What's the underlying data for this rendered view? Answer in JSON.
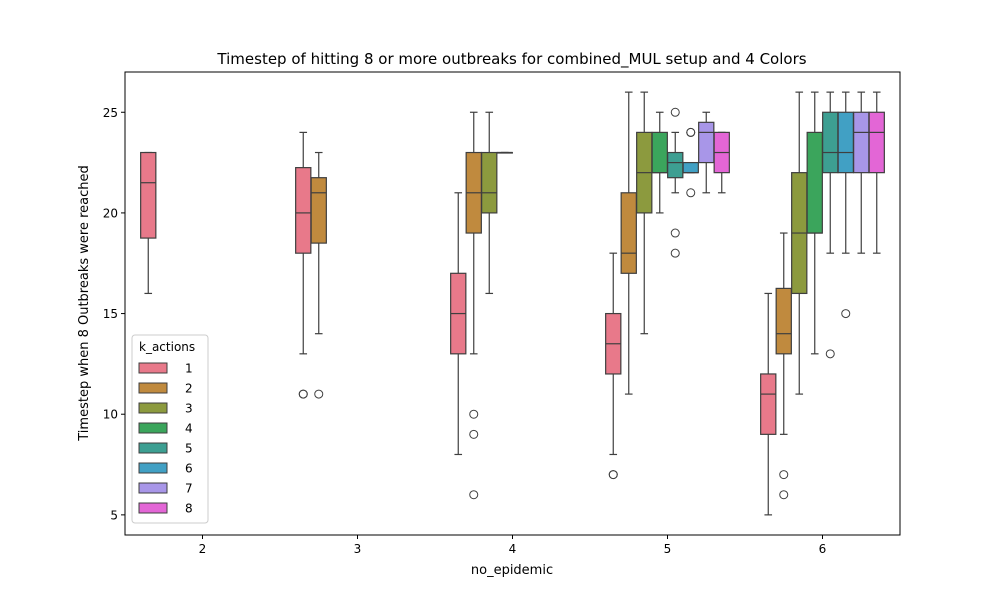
{
  "chart_data": {
    "type": "box",
    "title": "Timestep of hitting 8 or more outbreaks for combined_MUL setup and 4 Colors",
    "xlabel": "no_epidemic",
    "ylabel": "Timestep when 8 Outbreaks were reached",
    "ylim": [
      4,
      27
    ],
    "yticks": [
      5,
      10,
      15,
      20,
      25
    ],
    "categories": [
      "2",
      "3",
      "4",
      "5",
      "6"
    ],
    "grid": false,
    "legend": {
      "title": "k_actions",
      "placement": "lower-left"
    },
    "series": [
      {
        "name": "1",
        "color": "#e8798a",
        "boxes": [
          {
            "category": "2",
            "whislo": 16,
            "q1": 18.75,
            "med": 21.5,
            "q3": 23,
            "whishi": 23,
            "fliers": []
          },
          {
            "category": "3",
            "whislo": 13,
            "q1": 18,
            "med": 20,
            "q3": 22.25,
            "whishi": 24,
            "fliers": [
              11,
              11
            ]
          },
          {
            "category": "4",
            "whislo": 8,
            "q1": 13,
            "med": 15,
            "q3": 17,
            "whishi": 21,
            "fliers": []
          },
          {
            "category": "5",
            "whislo": 8,
            "q1": 12,
            "med": 13.5,
            "q3": 15,
            "whishi": 18,
            "fliers": [
              7,
              7
            ]
          },
          {
            "category": "6",
            "whislo": 5,
            "q1": 9,
            "med": 11,
            "q3": 12,
            "whishi": 16,
            "fliers": []
          }
        ]
      },
      {
        "name": "2",
        "color": "#c08a3e",
        "boxes": [
          {
            "category": "3",
            "whislo": 14,
            "q1": 18.5,
            "med": 21,
            "q3": 21.75,
            "whishi": 23,
            "fliers": [
              11
            ]
          },
          {
            "category": "4",
            "whislo": 13,
            "q1": 19,
            "med": 21,
            "q3": 23,
            "whishi": 25,
            "fliers": [
              10,
              9,
              6
            ]
          },
          {
            "category": "5",
            "whislo": 11,
            "q1": 17,
            "med": 18,
            "q3": 21,
            "whishi": 26,
            "fliers": []
          },
          {
            "category": "6",
            "whislo": 9,
            "q1": 13,
            "med": 14,
            "q3": 16.25,
            "whishi": 19,
            "fliers": [
              7,
              6
            ]
          }
        ]
      },
      {
        "name": "3",
        "color": "#8c9a3e",
        "boxes": [
          {
            "category": "4",
            "whislo": 16,
            "q1": 20,
            "med": 21,
            "q3": 23,
            "whishi": 25,
            "fliers": []
          },
          {
            "category": "5",
            "whislo": 14,
            "q1": 20,
            "med": 22,
            "q3": 24,
            "whishi": 26,
            "fliers": []
          },
          {
            "category": "6",
            "whislo": 11,
            "q1": 16,
            "med": 19,
            "q3": 22,
            "whishi": 26,
            "fliers": []
          }
        ]
      },
      {
        "name": "4",
        "color": "#3ba55c",
        "boxes": [
          {
            "category": "4",
            "whislo": 23,
            "q1": 23,
            "med": 23,
            "q3": 23,
            "whishi": 23,
            "fliers": []
          },
          {
            "category": "5",
            "whislo": 20,
            "q1": 22,
            "med": 22,
            "q3": 24,
            "whishi": 25,
            "fliers": []
          },
          {
            "category": "6",
            "whislo": 13,
            "q1": 19,
            "med": 19,
            "q3": 24,
            "whishi": 26,
            "fliers": []
          }
        ]
      },
      {
        "name": "5",
        "color": "#3d9f92",
        "boxes": [
          {
            "category": "5",
            "whislo": 21,
            "q1": 21.75,
            "med": 22.5,
            "q3": 23,
            "whishi": 24,
            "fliers": [
              25,
              19,
              18
            ]
          },
          {
            "category": "6",
            "whislo": 18,
            "q1": 22,
            "med": 23,
            "q3": 25,
            "whishi": 26,
            "fliers": [
              13
            ]
          }
        ]
      },
      {
        "name": "6",
        "color": "#41a0c4",
        "boxes": [
          {
            "category": "5",
            "whislo": 22,
            "q1": 22,
            "med": 22,
            "q3": 22.5,
            "whishi": 22.5,
            "fliers": [
              24,
              24,
              21
            ]
          },
          {
            "category": "6",
            "whislo": 18,
            "q1": 22,
            "med": 23,
            "q3": 25,
            "whishi": 26,
            "fliers": [
              15
            ]
          }
        ]
      },
      {
        "name": "7",
        "color": "#a896e8",
        "boxes": [
          {
            "category": "5",
            "whislo": 21,
            "q1": 22.5,
            "med": 24,
            "q3": 24.5,
            "whishi": 25,
            "fliers": []
          },
          {
            "category": "6",
            "whislo": 18,
            "q1": 22,
            "med": 24,
            "q3": 25,
            "whishi": 26,
            "fliers": []
          }
        ]
      },
      {
        "name": "8",
        "color": "#e366d6",
        "boxes": [
          {
            "category": "5",
            "whislo": 21,
            "q1": 22,
            "med": 23,
            "q3": 24,
            "whishi": 24,
            "fliers": []
          },
          {
            "category": "6",
            "whislo": 18,
            "q1": 22,
            "med": 24,
            "q3": 25,
            "whishi": 26,
            "fliers": []
          }
        ]
      }
    ]
  }
}
